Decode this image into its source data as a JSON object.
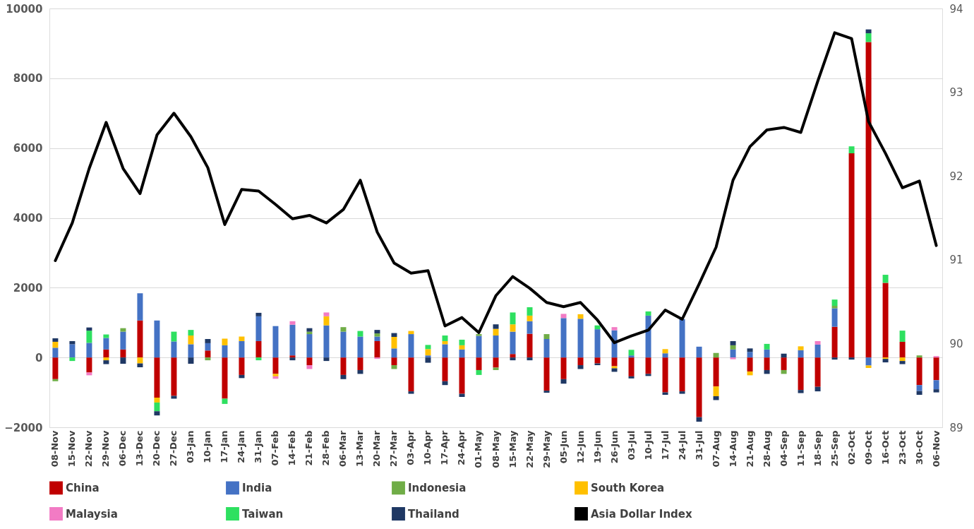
{
  "chart_data": {
    "type": "bar",
    "stacked": true,
    "categories": [
      "08-Nov",
      "15-Nov",
      "22-Nov",
      "29-Nov",
      "06-Dec",
      "13-Dec",
      "20-Dec",
      "27-Dec",
      "03-Jan",
      "10-Jan",
      "17-Jan",
      "24-Jan",
      "31-Jan",
      "07-Feb",
      "14-Feb",
      "21-Feb",
      "28-Feb",
      "06-Mar",
      "13-Mar",
      "20-Mar",
      "27-Mar",
      "03-Apr",
      "10-Apr",
      "17-Apr",
      "24-Apr",
      "01-May",
      "08-May",
      "15-May",
      "22-May",
      "29-May",
      "05-Jun",
      "12-Jun",
      "19-Jun",
      "26-Jun",
      "03-Jul",
      "10-Jul",
      "17-Jul",
      "24-Jul",
      "31-Jul",
      "07-Aug",
      "14-Aug",
      "21-Aug",
      "28-Aug",
      "04-Sep",
      "11-Sep",
      "18-Sep",
      "25-Sep",
      "02-Oct",
      "09-Oct",
      "16-Oct",
      "23-Oct",
      "30-Oct",
      "06-Nov"
    ],
    "series": [
      {
        "name": "China",
        "color": "#c00000",
        "values": [
          -620,
          0,
          -430,
          230,
          230,
          1060,
          -1150,
          -1100,
          0,
          200,
          -1180,
          -500,
          470,
          -470,
          60,
          -220,
          0,
          -500,
          -360,
          470,
          -220,
          -970,
          0,
          -680,
          -1040,
          -360,
          -290,
          100,
          680,
          -950,
          -620,
          -220,
          -170,
          -250,
          -540,
          -470,
          -1000,
          -970,
          -1710,
          -830,
          0,
          -400,
          -360,
          -360,
          -930,
          -840,
          880,
          5850,
          9040,
          2140,
          450,
          -790,
          -650
        ]
      },
      {
        "name": "India",
        "color": "#4472c4",
        "values": [
          280,
          380,
          420,
          330,
          510,
          780,
          1060,
          460,
          380,
          210,
          350,
          470,
          710,
          900,
          880,
          670,
          920,
          740,
          600,
          130,
          260,
          670,
          60,
          380,
          230,
          620,
          630,
          640,
          360,
          530,
          1130,
          1110,
          810,
          780,
          60,
          1200,
          120,
          1100,
          310,
          0,
          230,
          160,
          230,
          0,
          210,
          370,
          530,
          0,
          -230,
          0,
          0,
          -170,
          -260
        ]
      },
      {
        "name": "Indonesia",
        "color": "#70ad47",
        "values": [
          -60,
          0,
          0,
          0,
          100,
          0,
          0,
          0,
          0,
          -80,
          0,
          0,
          0,
          0,
          0,
          70,
          0,
          130,
          0,
          90,
          -110,
          0,
          0,
          0,
          0,
          50,
          -70,
          0,
          0,
          140,
          0,
          0,
          0,
          0,
          0,
          0,
          0,
          0,
          0,
          130,
          120,
          0,
          0,
          -110,
          0,
          0,
          70,
          0,
          0,
          0,
          0,
          60,
          0
        ]
      },
      {
        "name": "South Korea",
        "color": "#ffc000",
        "values": [
          170,
          0,
          0,
          -80,
          0,
          -170,
          -140,
          0,
          250,
          0,
          190,
          130,
          0,
          -70,
          0,
          0,
          260,
          0,
          0,
          0,
          330,
          90,
          180,
          90,
          120,
          0,
          190,
          210,
          160,
          0,
          0,
          130,
          0,
          -60,
          0,
          0,
          120,
          0,
          0,
          -280,
          0,
          -110,
          0,
          0,
          110,
          0,
          0,
          0,
          -70,
          -40,
          -100,
          0,
          0
        ]
      },
      {
        "name": "Malaysia",
        "color": "#f27bc4",
        "values": [
          0,
          0,
          -80,
          0,
          0,
          0,
          0,
          0,
          0,
          0,
          0,
          0,
          0,
          -70,
          100,
          -110,
          110,
          0,
          0,
          -40,
          0,
          0,
          0,
          0,
          0,
          0,
          0,
          0,
          0,
          0,
          120,
          0,
          0,
          90,
          0,
          0,
          0,
          0,
          0,
          0,
          -50,
          0,
          0,
          0,
          0,
          100,
          0,
          0,
          0,
          0,
          0,
          0,
          40
        ]
      },
      {
        "name": "Taiwan",
        "color": "#2ee060",
        "values": [
          0,
          -100,
          350,
          100,
          0,
          0,
          -250,
          280,
          160,
          0,
          -150,
          0,
          -80,
          0,
          0,
          0,
          0,
          0,
          160,
          0,
          0,
          0,
          120,
          160,
          160,
          -140,
          0,
          340,
          240,
          0,
          0,
          0,
          110,
          0,
          160,
          120,
          0,
          0,
          0,
          0,
          0,
          0,
          160,
          0,
          0,
          0,
          180,
          200,
          250,
          230,
          320,
          0,
          0
        ]
      },
      {
        "name": "Thailand",
        "color": "#1f3864",
        "values": [
          100,
          90,
          90,
          -110,
          -180,
          -110,
          -120,
          -80,
          -180,
          120,
          0,
          -90,
          100,
          0,
          -80,
          100,
          -100,
          -120,
          -110,
          100,
          110,
          -70,
          -150,
          -110,
          -90,
          0,
          130,
          -80,
          -80,
          -60,
          -130,
          -110,
          -50,
          -100,
          -60,
          -60,
          -70,
          -70,
          -130,
          -110,
          120,
          100,
          -110,
          110,
          -90,
          -130,
          -60,
          -60,
          110,
          -100,
          -90,
          -110,
          -90
        ]
      },
      {
        "name": "Asia Dollar Index",
        "type": "line",
        "axis": "y2",
        "color": "#000000",
        "values": [
          90.99,
          91.44,
          92.09,
          92.64,
          92.09,
          91.79,
          92.49,
          92.75,
          92.47,
          92.1,
          91.42,
          91.84,
          91.82,
          91.66,
          91.49,
          91.53,
          91.44,
          91.6,
          91.95,
          91.33,
          90.96,
          90.84,
          90.87,
          90.21,
          90.31,
          90.13,
          90.57,
          90.8,
          90.66,
          90.49,
          90.44,
          90.49,
          90.28,
          90.01,
          90.09,
          90.16,
          90.4,
          90.29,
          90.71,
          91.15,
          91.95,
          92.35,
          92.55,
          92.58,
          92.52,
          93.13,
          93.71,
          93.64,
          92.65,
          92.27,
          91.86,
          91.94,
          91.17
        ]
      }
    ],
    "ylim": [
      -2000,
      10000
    ],
    "yticks": [
      -2000,
      0,
      2000,
      4000,
      6000,
      8000,
      10000
    ],
    "y2lim": [
      89,
      94
    ],
    "y2ticks": [
      89,
      90,
      91,
      92,
      93,
      94
    ],
    "grid": "y",
    "legend": "bottom"
  }
}
